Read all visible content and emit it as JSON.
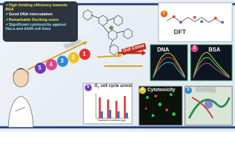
{
  "summary_points": [
    "High binding efficiency towards BSA",
    "Good DNA intercalation",
    "Remarkable Docking score",
    "Significant cytotoxicity against HeLa and A549 cell lines"
  ],
  "targets_label": "Targets",
  "outcome_label": "Out Come",
  "target_numbers": [
    "5",
    "4",
    "3",
    "2",
    "1"
  ],
  "panels": {
    "dft": {
      "number": "1",
      "label": "DFT"
    },
    "dna": {
      "label": "DNA"
    },
    "bsa": {
      "number": "2",
      "label": "BSA"
    },
    "docking": {
      "number": "3",
      "label": "Docking"
    },
    "cytotoxicity": {
      "number": "4",
      "label": "Cytotoxicity"
    },
    "cell_cycle": {
      "number": "5",
      "title_main": "G",
      "title_sub": "1",
      "title_rest": " cell cycle arrest",
      "x_axis_label": "Treatment Conditions (µg)"
    }
  }
}
